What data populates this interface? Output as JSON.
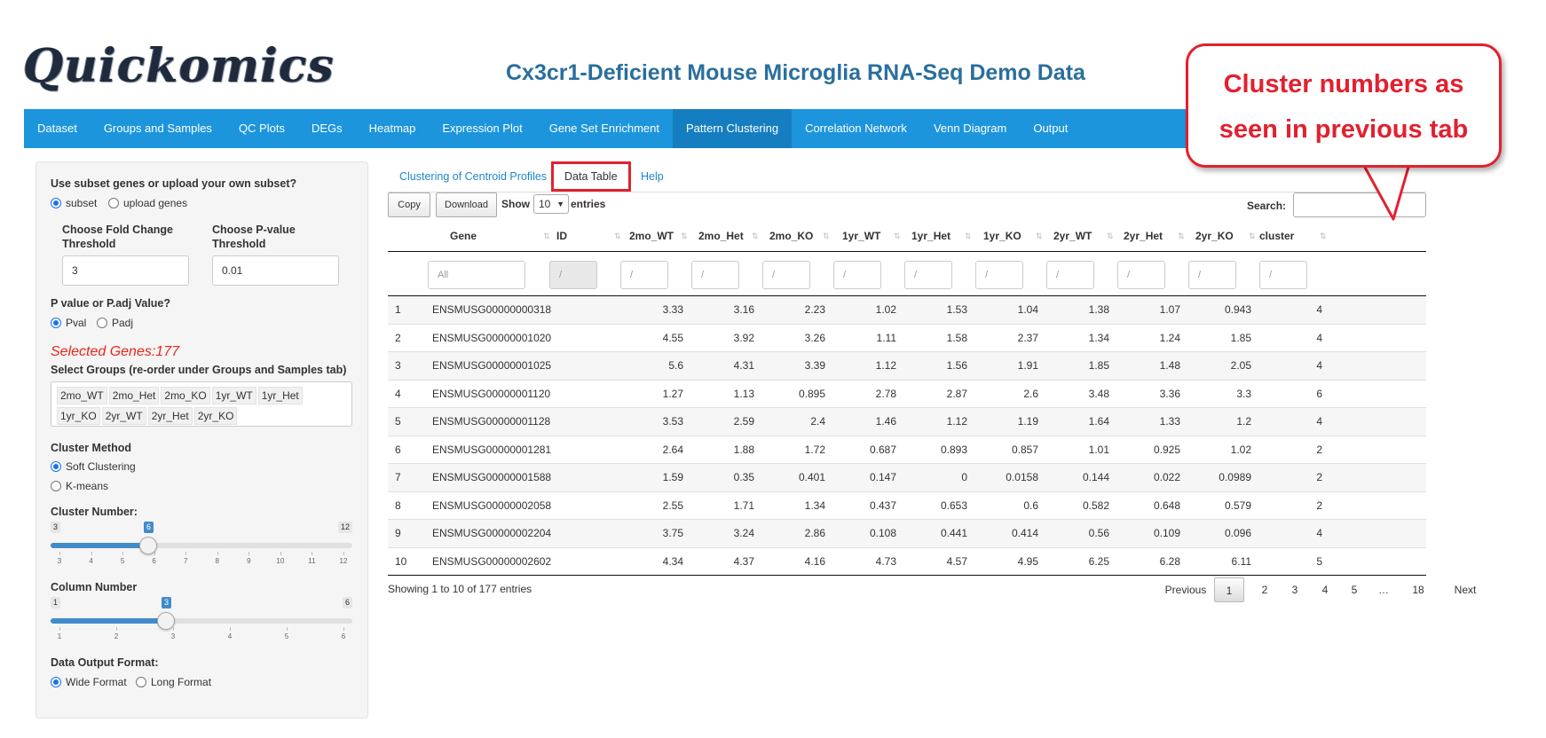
{
  "header": {
    "logo_text": "Quickomics",
    "title": "Cx3cr1-Deficient Mouse Microglia RNA-Seq Demo Data"
  },
  "navbar": {
    "items": [
      "Dataset",
      "Groups and Samples",
      "QC Plots",
      "DEGs",
      "Heatmap",
      "Expression Plot",
      "Gene Set Enrichment",
      "Pattern Clustering",
      "Correlation Network",
      "Venn Diagram",
      "Output"
    ],
    "active": "Pattern Clustering"
  },
  "sidebar": {
    "subset_question": "Use subset genes or upload your own subset?",
    "subset_options": [
      "subset",
      "upload genes"
    ],
    "fc_label": "Choose Fold Change Threshold",
    "fc_value": "3",
    "pval_label": "Choose P-value Threshold",
    "pval_value": "0.01",
    "pval_type_label": "P value or P.adj Value?",
    "pval_type_options": [
      "Pval",
      "Padj"
    ],
    "selected_genes": "Selected Genes:177",
    "groups_label": "Select Groups (re-order under Groups and Samples tab)",
    "groups": [
      "2mo_WT",
      "2mo_Het",
      "2mo_KO",
      "1yr_WT",
      "1yr_Het",
      "1yr_KO",
      "2yr_WT",
      "2yr_Het",
      "2yr_KO"
    ],
    "cluster_method_label": "Cluster Method",
    "cluster_method_options": [
      "Soft Clustering",
      "K-means"
    ],
    "cluster_number": {
      "label": "Cluster Number:",
      "min": "3",
      "max": "12",
      "value": "6",
      "value_num": 6,
      "min_num": 3,
      "max_num": 12,
      "ticks": [
        "3",
        "4",
        "5",
        "6",
        "7",
        "8",
        "9",
        "10",
        "11",
        "12"
      ]
    },
    "column_number": {
      "label": "Column Number",
      "min": "1",
      "max": "6",
      "value": "3",
      "value_num": 3,
      "min_num": 1,
      "max_num": 6,
      "ticks": [
        "1",
        "2",
        "3",
        "4",
        "5",
        "6"
      ]
    },
    "output_format_label": "Data Output Format:",
    "output_format_options": [
      "Wide Format",
      "Long Format"
    ]
  },
  "tabs": {
    "items": [
      "Clustering of Centroid Profiles",
      "Data Table",
      "Help"
    ],
    "active": "Data Table"
  },
  "table_controls": {
    "copy": "Copy",
    "download": "Download",
    "show": "Show",
    "length": "10",
    "entries": "entries",
    "search": "Search:"
  },
  "table": {
    "columns": [
      "",
      "Gene",
      "ID",
      "2mo_WT",
      "2mo_Het",
      "2mo_KO",
      "1yr_WT",
      "1yr_Het",
      "1yr_KO",
      "2yr_WT",
      "2yr_Het",
      "2yr_KO",
      "cluster"
    ],
    "filter_placeholders": [
      "All",
      "/",
      "/",
      "/",
      "/",
      "/",
      "/",
      "/",
      "/",
      "/",
      "/",
      "/"
    ],
    "rows": [
      [
        "1",
        "ENSMUSG00000000318",
        "",
        "3.33",
        "3.16",
        "2.23",
        "1.02",
        "1.53",
        "1.04",
        "1.38",
        "1.07",
        "0.943",
        "4"
      ],
      [
        "2",
        "ENSMUSG00000001020",
        "",
        "4.55",
        "3.92",
        "3.26",
        "1.11",
        "1.58",
        "2.37",
        "1.34",
        "1.24",
        "1.85",
        "4"
      ],
      [
        "3",
        "ENSMUSG00000001025",
        "",
        "5.6",
        "4.31",
        "3.39",
        "1.12",
        "1.56",
        "1.91",
        "1.85",
        "1.48",
        "2.05",
        "4"
      ],
      [
        "4",
        "ENSMUSG00000001120",
        "",
        "1.27",
        "1.13",
        "0.895",
        "2.78",
        "2.87",
        "2.6",
        "3.48",
        "3.36",
        "3.3",
        "6"
      ],
      [
        "5",
        "ENSMUSG00000001128",
        "",
        "3.53",
        "2.59",
        "2.4",
        "1.46",
        "1.12",
        "1.19",
        "1.64",
        "1.33",
        "1.2",
        "4"
      ],
      [
        "6",
        "ENSMUSG00000001281",
        "",
        "2.64",
        "1.88",
        "1.72",
        "0.687",
        "0.893",
        "0.857",
        "1.01",
        "0.925",
        "1.02",
        "2"
      ],
      [
        "7",
        "ENSMUSG00000001588",
        "",
        "1.59",
        "0.35",
        "0.401",
        "0.147",
        "0",
        "0.0158",
        "0.144",
        "0.022",
        "0.0989",
        "2"
      ],
      [
        "8",
        "ENSMUSG00000002058",
        "",
        "2.55",
        "1.71",
        "1.34",
        "0.437",
        "0.653",
        "0.6",
        "0.582",
        "0.648",
        "0.579",
        "2"
      ],
      [
        "9",
        "ENSMUSG00000002204",
        "",
        "3.75",
        "3.24",
        "2.86",
        "0.108",
        "0.441",
        "0.414",
        "0.56",
        "0.109",
        "0.096",
        "4"
      ],
      [
        "10",
        "ENSMUSG00000002602",
        "",
        "4.34",
        "4.37",
        "4.16",
        "4.73",
        "4.57",
        "4.95",
        "6.25",
        "6.28",
        "6.11",
        "5"
      ]
    ],
    "info": "Showing 1 to 10 of 177 entries",
    "pagination": [
      "Previous",
      "1",
      "2",
      "3",
      "4",
      "5",
      "…",
      "18",
      "Next"
    ],
    "current_page": "1"
  },
  "callout": {
    "lines": [
      "Cluster numbers as",
      "seen in previous tab"
    ],
    "color": "#e2202f"
  }
}
